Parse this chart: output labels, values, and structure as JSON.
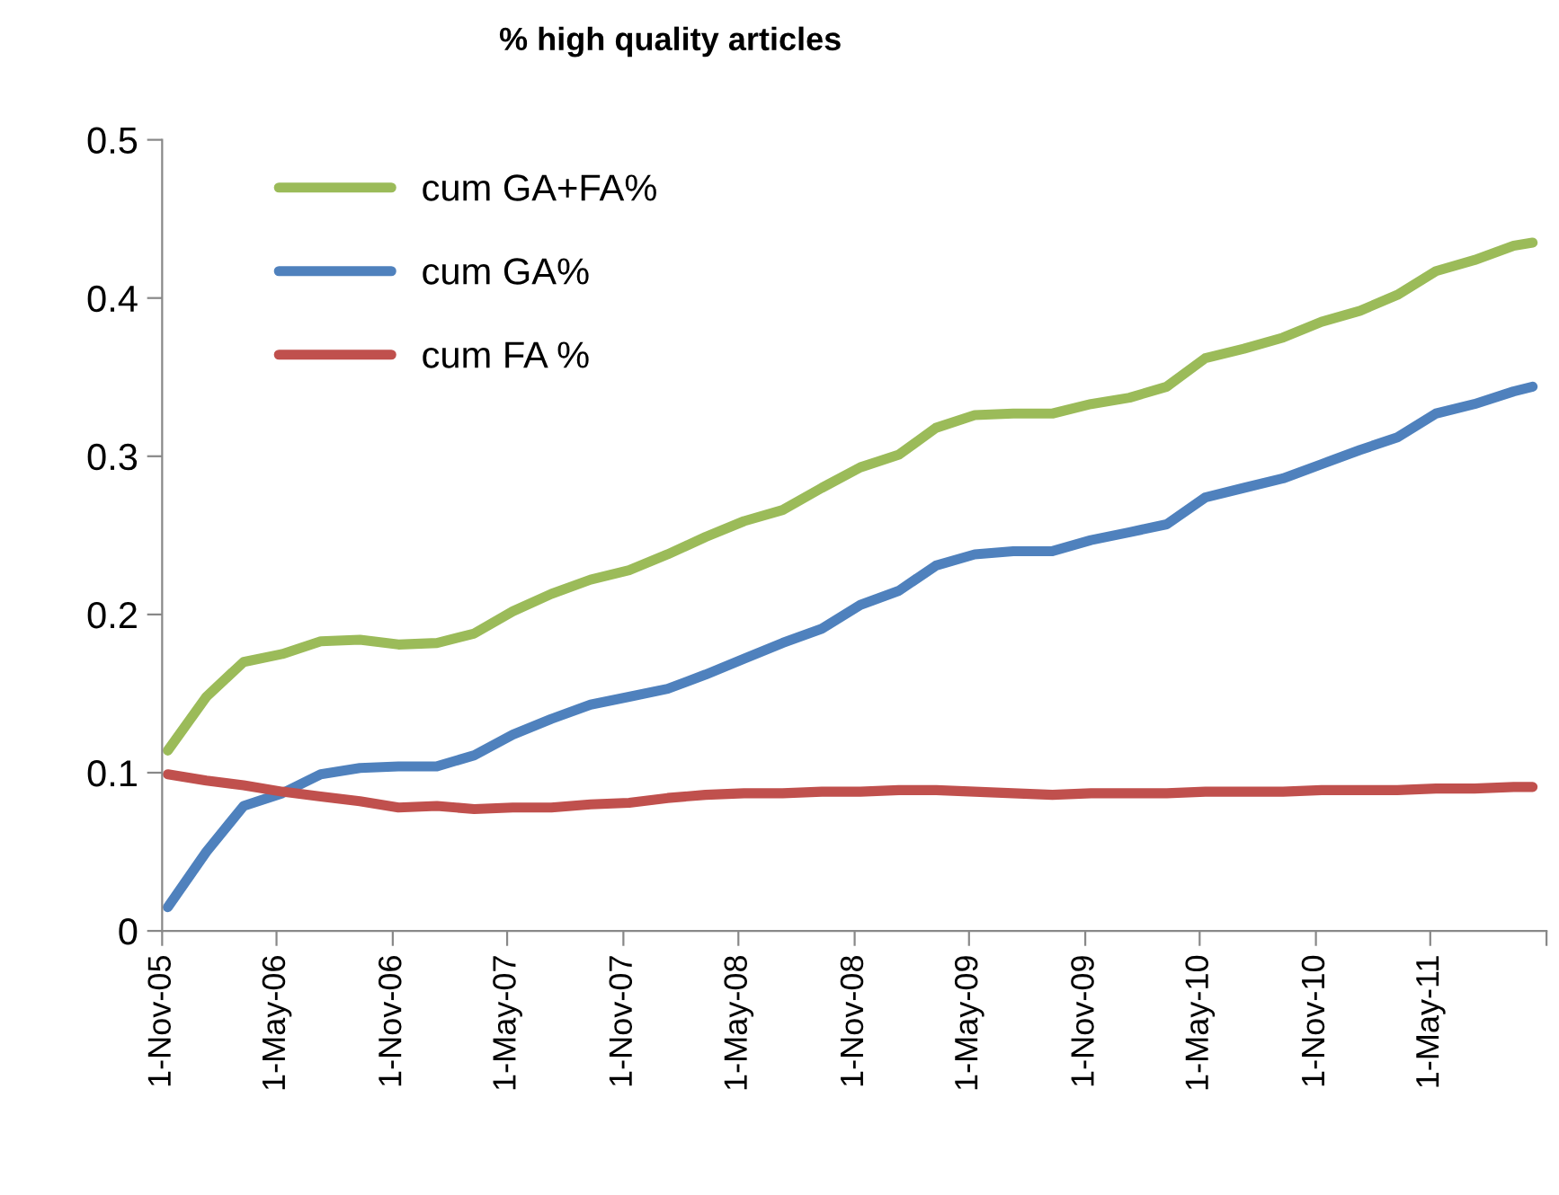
{
  "chart_data": {
    "type": "line",
    "title": "% high quality articles",
    "x": [
      "2005-11-10",
      "2006-01-10",
      "2006-03-10",
      "2006-05-10",
      "2006-07-10",
      "2006-09-10",
      "2006-11-10",
      "2007-01-10",
      "2007-03-10",
      "2007-05-10",
      "2007-07-10",
      "2007-09-10",
      "2007-11-10",
      "2008-01-10",
      "2008-03-10",
      "2008-05-10",
      "2008-07-10",
      "2008-09-10",
      "2008-11-10",
      "2009-01-10",
      "2009-03-10",
      "2009-05-10",
      "2009-07-10",
      "2009-09-10",
      "2009-11-10",
      "2010-01-10",
      "2010-03-10",
      "2010-05-10",
      "2010-07-10",
      "2010-09-10",
      "2010-11-10",
      "2011-01-10",
      "2011-03-10",
      "2011-05-10",
      "2011-07-10",
      "2011-09-10",
      "2011-10-10"
    ],
    "series": [
      {
        "name": "cum GA+FA%",
        "color": "#9bbb59",
        "values": [
          0.114,
          0.148,
          0.17,
          0.175,
          0.183,
          0.184,
          0.181,
          0.182,
          0.188,
          0.202,
          0.213,
          0.222,
          0.228,
          0.238,
          0.249,
          0.259,
          0.266,
          0.28,
          0.293,
          0.301,
          0.318,
          0.326,
          0.327,
          0.327,
          0.333,
          0.337,
          0.344,
          0.362,
          0.368,
          0.375,
          0.385,
          0.392,
          0.402,
          0.417,
          0.424,
          0.433,
          0.435
        ]
      },
      {
        "name": "cum GA%",
        "color": "#4f81bd",
        "values": [
          0.015,
          0.05,
          0.079,
          0.087,
          0.099,
          0.103,
          0.104,
          0.104,
          0.111,
          0.124,
          0.134,
          0.143,
          0.148,
          0.153,
          0.162,
          0.172,
          0.182,
          0.191,
          0.206,
          0.215,
          0.231,
          0.238,
          0.24,
          0.24,
          0.247,
          0.252,
          0.257,
          0.274,
          0.28,
          0.286,
          0.295,
          0.304,
          0.312,
          0.327,
          0.333,
          0.341,
          0.344
        ]
      },
      {
        "name": "cum FA %",
        "color": "#c0504d",
        "values": [
          0.099,
          0.095,
          0.092,
          0.088,
          0.085,
          0.082,
          0.078,
          0.079,
          0.077,
          0.078,
          0.078,
          0.08,
          0.081,
          0.084,
          0.086,
          0.087,
          0.087,
          0.088,
          0.088,
          0.089,
          0.089,
          0.088,
          0.087,
          0.086,
          0.087,
          0.087,
          0.087,
          0.088,
          0.088,
          0.088,
          0.089,
          0.089,
          0.089,
          0.09,
          0.09,
          0.091,
          0.091
        ]
      }
    ],
    "xlim": [
      "2005-11-01",
      "2011-11-01"
    ],
    "xticks": [
      {
        "value": "2005-11-01",
        "label": "1-Nov-05"
      },
      {
        "value": "2006-05-01",
        "label": "1-May-06"
      },
      {
        "value": "2006-11-01",
        "label": "1-Nov-06"
      },
      {
        "value": "2007-05-01",
        "label": "1-May-07"
      },
      {
        "value": "2007-11-01",
        "label": "1-Nov-07"
      },
      {
        "value": "2008-05-01",
        "label": "1-May-08"
      },
      {
        "value": "2008-11-01",
        "label": "1-Nov-08"
      },
      {
        "value": "2009-05-01",
        "label": "1-May-09"
      },
      {
        "value": "2009-11-01",
        "label": "1-Nov-09"
      },
      {
        "value": "2010-05-01",
        "label": "1-May-10"
      },
      {
        "value": "2010-11-01",
        "label": "1-Nov-10"
      },
      {
        "value": "2011-05-01",
        "label": "1-May-11"
      },
      {
        "value": "2011-11-01",
        "label": null
      }
    ],
    "ylim": [
      0,
      0.5
    ],
    "yticks": [
      0,
      0.1,
      0.2,
      0.3,
      0.4,
      0.5
    ],
    "grid": false,
    "legend": "top left",
    "marker": "none",
    "line_style": "solid"
  }
}
